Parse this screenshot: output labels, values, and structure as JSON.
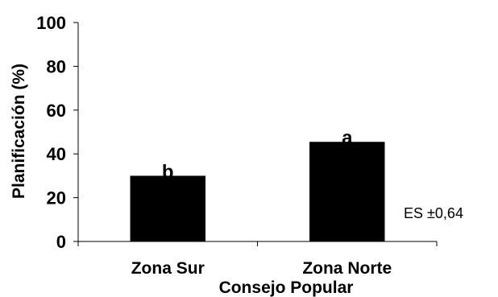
{
  "chart_data": {
    "type": "bar",
    "categories": [
      "Zona Sur",
      "Zona Norte"
    ],
    "values": [
      30,
      45.5
    ],
    "bar_labels": [
      "b",
      "a"
    ],
    "xlabel": "Consejo Popular",
    "ylabel": "Planificación (%)",
    "ylim": [
      0,
      100
    ],
    "yticks": [
      0,
      20,
      40,
      60,
      80,
      100
    ],
    "annotation": "ES ±0,64",
    "grid": false,
    "legend": "none",
    "bar_color": "#000000"
  }
}
